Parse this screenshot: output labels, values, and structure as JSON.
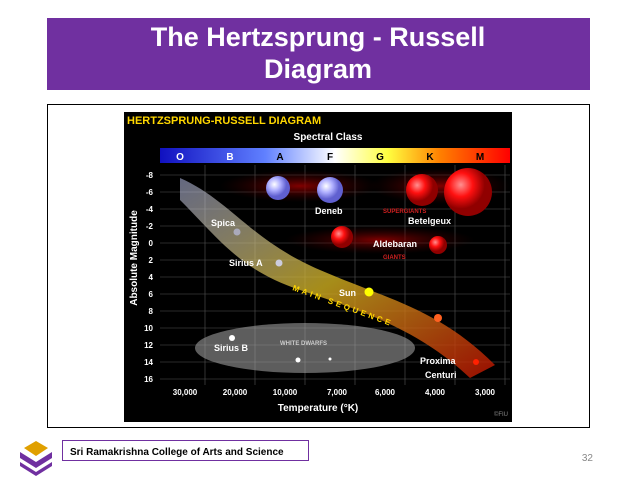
{
  "slide": {
    "title": "The Hertzsprung - Russell Diagram",
    "page_number": "32"
  },
  "figure": {
    "title": "HERTZSPRUNG-RUSSELL DIAGRAM",
    "top_axis_label": "Spectral Class",
    "spectral_classes": [
      "O",
      "B",
      "A",
      "F",
      "G",
      "K",
      "M"
    ],
    "y_axis_label": "Absolute Magnitude",
    "y_ticks": [
      "-8",
      "-6",
      "-4",
      "-2",
      "0",
      "2",
      "4",
      "6",
      "8",
      "10",
      "12",
      "14",
      "16"
    ],
    "x_ticks": [
      "30,000",
      "20,000",
      "10,000",
      "7,000",
      "6,000",
      "4,000",
      "3,000"
    ],
    "x_axis_label": "Temperature (°K)",
    "region_labels": [
      "SUPERGIANTS",
      "GIANTS",
      "MAIN SEQUENCE",
      "WHITE DWARFS"
    ],
    "star_labels": [
      "Deneb",
      "Spica",
      "Betelgeux",
      "Aldebaran",
      "Sirius A",
      "Sun",
      "Sirius B",
      "Proxima",
      "Centuri"
    ],
    "credit": "©FIU"
  },
  "footer": {
    "college": "Sri Ramakrishna College of Arts and Science"
  }
}
